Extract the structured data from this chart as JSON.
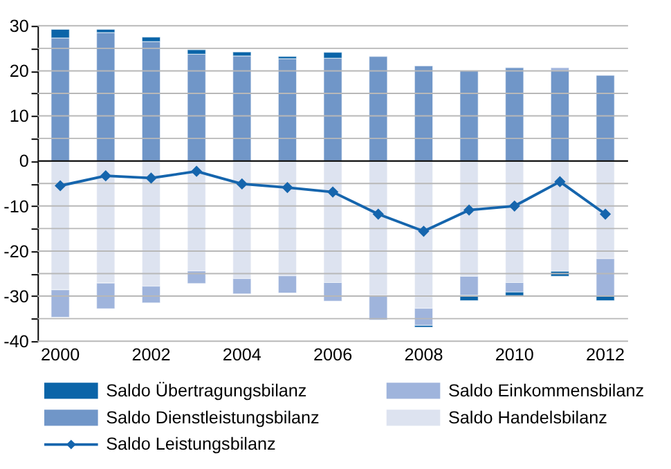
{
  "chart_data": {
    "type": "bar",
    "stacked": true,
    "categories": [
      "2000",
      null,
      "2002",
      null,
      "2004",
      null,
      "2006",
      null,
      "2008",
      null,
      "2010",
      null,
      "2012"
    ],
    "series": [
      {
        "name": "Saldo Handelsbilanz",
        "color": "#dde3f0",
        "values": [
          -28.6,
          -27.1,
          -27.8,
          -24.4,
          -26.1,
          -25.5,
          -27.0,
          -29.9,
          -32.7,
          -25.6,
          -27.0,
          -24.5,
          -21.7
        ]
      },
      {
        "name": "Saldo Dienstleistungsbilanz",
        "color": "#7096c8",
        "values": [
          27.3,
          28.5,
          26.5,
          23.7,
          23.3,
          22.7,
          22.8,
          23.2,
          21.1,
          20.0,
          20.7,
          20.0,
          19.0
        ]
      },
      {
        "name": "Saldo Einkommensbilanz",
        "color": "#9fb4dc",
        "values": [
          -6.1,
          -5.7,
          -3.7,
          -2.8,
          -3.4,
          -3.8,
          -4.1,
          -5.4,
          -3.8,
          -4.2,
          -2.1,
          0.7,
          -8.3
        ]
      },
      {
        "name": "Saldo Übertragungsbilanz",
        "color": "#0a64a8",
        "values": [
          1.9,
          0.7,
          1.0,
          1.0,
          0.9,
          0.5,
          1.3,
          null,
          -0.4,
          -1.2,
          -0.8,
          -1.1,
          -1.0
        ]
      },
      {
        "name": "Saldo Leistungsbilanz",
        "type": "line",
        "color": "#1565ad",
        "marker": "diamond",
        "line_style": "solid",
        "values": [
          -5.5,
          -3.3,
          -3.8,
          -2.3,
          -5.1,
          -5.9,
          -6.9,
          -11.8,
          -15.6,
          -10.9,
          -10.0,
          -4.6,
          -11.8
        ]
      }
    ],
    "ylim": [
      -40,
      30
    ],
    "yticks": [
      -40,
      {
        "value": -35,
        "label": null
      },
      -30,
      {
        "value": -25,
        "label": null
      },
      -20,
      {
        "value": -15,
        "label": null
      },
      -10,
      {
        "value": -5,
        "label": null
      },
      0,
      {
        "value": 5,
        "label": null
      },
      10,
      {
        "value": 15,
        "label": null
      },
      20,
      {
        "value": 25,
        "label": null
      },
      30
    ],
    "grid": "y",
    "legend": "bottom"
  }
}
